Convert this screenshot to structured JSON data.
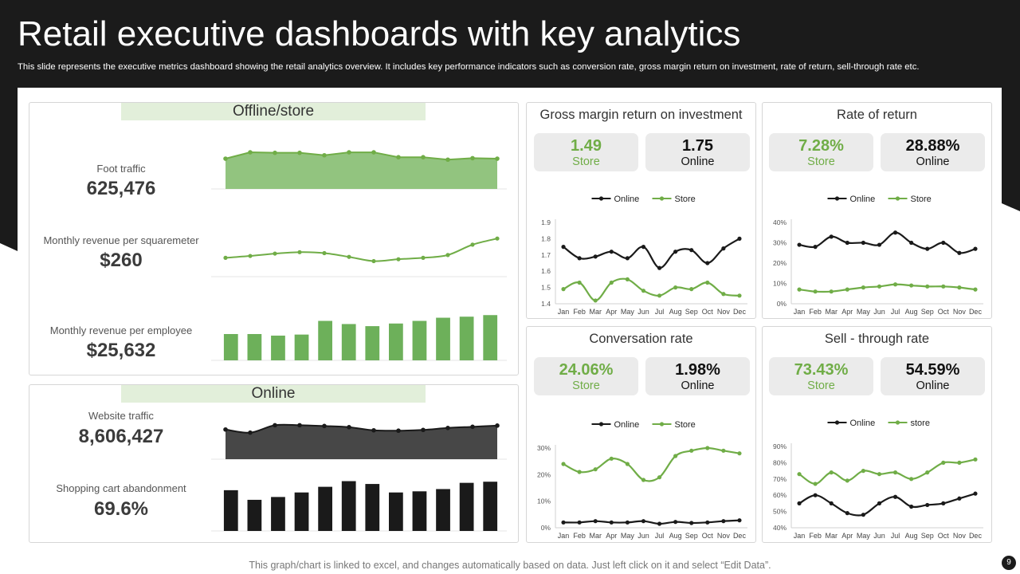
{
  "slide": {
    "title": "Retail executive dashboards with key analytics",
    "subtitle": "This slide represents the executive metrics dashboard showing the retail analytics overview.  It includes key performance indicators such as conversion rate, gross margin return on investment, rate of return, sell-through rate etc.",
    "footer": "This graph/chart is linked to excel, and changes automatically based on data. Just left click on it and select “Edit Data”.",
    "page_number": "9"
  },
  "colors": {
    "band": "#1b1b1b",
    "green": "#70ad47",
    "green_fill": "#92c47f",
    "green_bar": "#6db05a",
    "dark": "#1a1a1a",
    "dark_fill": "#474747"
  },
  "offline": {
    "header": "Offline/store",
    "metrics": [
      {
        "label": "Foot traffic",
        "value": "625,476"
      },
      {
        "label": "Monthly revenue  per squaremeter",
        "value": "$260"
      },
      {
        "label": "Monthly revenue  per employee",
        "value": "$25,632"
      }
    ]
  },
  "online": {
    "header": "Online",
    "metrics": [
      {
        "label": "Website traffic",
        "value": "8,606,427"
      },
      {
        "label": "Shopping cart abandonment",
        "value": "69.6%"
      }
    ]
  },
  "cards": {
    "gmroi": {
      "title": "Gross  margin return on investment",
      "store_value": "1.49",
      "store_label": "Store",
      "online_value": "1.75",
      "online_label": "Online"
    },
    "ror": {
      "title": "Rate of return",
      "store_value": "7.28%",
      "store_label": "Store",
      "online_value": "28.88%",
      "online_label": "Online"
    },
    "conv": {
      "title": "Conversation rate",
      "store_value": "24.06%",
      "store_label": "Store",
      "online_value": "1.98%",
      "online_label": "Online"
    },
    "sell": {
      "title": "Sell - through rate",
      "store_value": "73.43%",
      "store_label": "Store",
      "online_value": "54.59%",
      "online_label": "Online"
    }
  },
  "chart_data": [
    {
      "id": "foot_traffic",
      "type": "area",
      "series": [
        {
          "name": "Foot traffic",
          "values": [
            6.2,
            7.5,
            7.4,
            7.4,
            6.9,
            7.5,
            7.5,
            6.5,
            6.5,
            6.0,
            6.3,
            6.2
          ]
        }
      ],
      "ylim": [
        0,
        8
      ]
    },
    {
      "id": "rev_sqm",
      "type": "line",
      "series": [
        {
          "name": "Monthly revenue per squaremeter",
          "values": [
            4.0,
            4.4,
            4.9,
            5.2,
            5.0,
            4.2,
            3.3,
            3.7,
            4.0,
            4.6,
            6.8,
            8.1
          ]
        }
      ],
      "ylim": [
        0,
        10
      ]
    },
    {
      "id": "rev_emp",
      "type": "bar",
      "series": [
        {
          "name": "Monthly revenue per employee",
          "values": [
            50,
            50,
            47,
            49,
            75,
            69,
            65,
            70,
            75,
            81,
            83,
            86
          ]
        }
      ],
      "ylim": [
        0,
        100
      ]
    },
    {
      "id": "web_traffic",
      "type": "area",
      "series": [
        {
          "name": "Website traffic",
          "values": [
            7.6,
            6.8,
            8.7,
            8.7,
            8.5,
            8.2,
            7.4,
            7.3,
            7.5,
            8.0,
            8.3,
            8.6
          ]
        }
      ],
      "ylim": [
        0,
        10
      ]
    },
    {
      "id": "cart_abandon",
      "type": "bar",
      "series": [
        {
          "name": "Shopping cart abandonment",
          "values": [
            72,
            55,
            60,
            68,
            78,
            88,
            83,
            68,
            70,
            74,
            85,
            87
          ]
        }
      ],
      "ylim": [
        0,
        100
      ]
    },
    {
      "id": "gmroi",
      "type": "line",
      "categories": [
        "Jan",
        "Feb",
        "Mar",
        "Apr",
        "May",
        "Jun",
        "Jul",
        "Aug",
        "Sep",
        "Oct",
        "Nov",
        "Dec"
      ],
      "series": [
        {
          "name": "Online",
          "values": [
            1.75,
            1.68,
            1.69,
            1.72,
            1.68,
            1.75,
            1.62,
            1.72,
            1.73,
            1.65,
            1.74,
            1.8
          ]
        },
        {
          "name": "Store",
          "values": [
            1.49,
            1.53,
            1.42,
            1.53,
            1.55,
            1.48,
            1.45,
            1.5,
            1.49,
            1.53,
            1.46,
            1.45
          ]
        }
      ],
      "ylim": [
        1.4,
        1.9
      ],
      "yticks": [
        "1.4",
        "1.5",
        "1.6",
        "1.7",
        "1.8",
        "1.9"
      ]
    },
    {
      "id": "ror",
      "type": "line",
      "categories": [
        "Jan",
        "Feb",
        "Mar",
        "Apr",
        "May",
        "Jun",
        "Jul",
        "Aug",
        "Sep",
        "Oct",
        "Nov",
        "Dec"
      ],
      "series": [
        {
          "name": "Online",
          "values": [
            29,
            28,
            33,
            30,
            30,
            29,
            35,
            30,
            27,
            30,
            25,
            27
          ]
        },
        {
          "name": "Store",
          "values": [
            7,
            6,
            6,
            7,
            8,
            8.5,
            9.5,
            9,
            8.5,
            8.5,
            8,
            7
          ]
        }
      ],
      "ylim": [
        0,
        40
      ],
      "yticks": [
        "0%",
        "10%",
        "20%",
        "30%",
        "40%"
      ]
    },
    {
      "id": "conv",
      "type": "line",
      "categories": [
        "Jan",
        "Feb",
        "Mar",
        "Apr",
        "May",
        "Jun",
        "Jul",
        "Aug",
        "Sep",
        "Oct",
        "Nov",
        "Dec"
      ],
      "series": [
        {
          "name": "Online",
          "values": [
            2,
            2,
            2.5,
            2,
            2,
            2.5,
            1.5,
            2.2,
            1.8,
            2,
            2.5,
            2.8
          ]
        },
        {
          "name": "Store",
          "values": [
            24,
            21,
            22,
            26,
            24,
            18,
            19,
            27,
            29,
            30,
            29,
            28
          ]
        }
      ],
      "ylim": [
        0,
        30
      ],
      "yticks": [
        "0%",
        "10%",
        "20%",
        "30%"
      ]
    },
    {
      "id": "sell",
      "type": "line",
      "categories": [
        "Jan",
        "Feb",
        "Mar",
        "Apr",
        "May",
        "Jun",
        "Jul",
        "Aug",
        "Sep",
        "Oct",
        "Nov",
        "Dec"
      ],
      "series": [
        {
          "name": "Online",
          "values": [
            55,
            60,
            55,
            49,
            48,
            55,
            59,
            53,
            54,
            55,
            58,
            61
          ]
        },
        {
          "name": "store",
          "values": [
            73,
            67,
            74,
            69,
            75,
            73,
            74,
            70,
            74,
            80,
            80,
            82
          ]
        }
      ],
      "ylim": [
        40,
        90
      ],
      "yticks": [
        "40%",
        "50%",
        "60%",
        "70%",
        "80%",
        "90%"
      ]
    }
  ]
}
